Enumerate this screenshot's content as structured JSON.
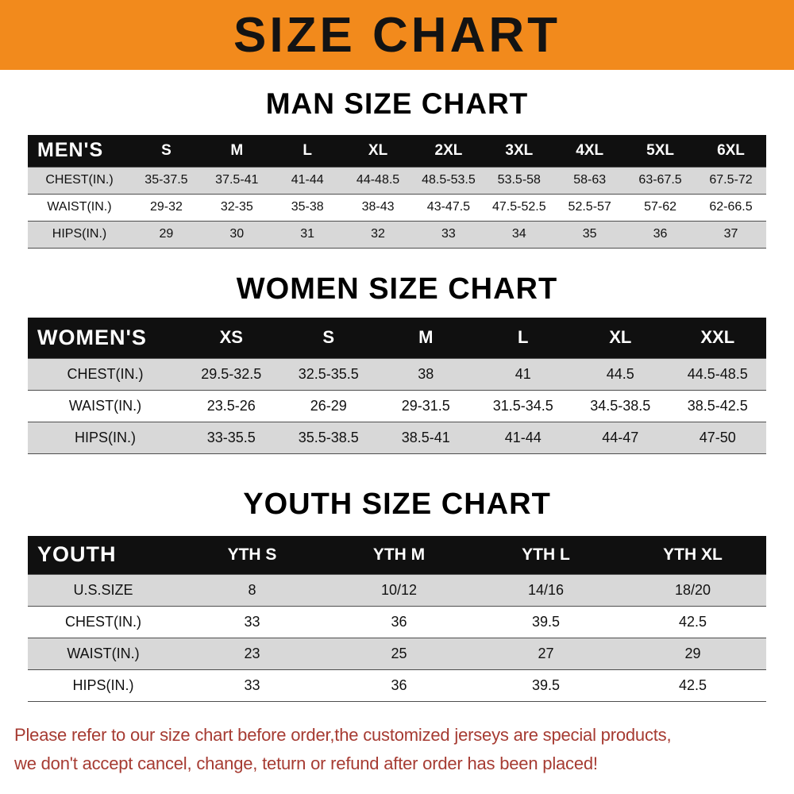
{
  "banner": {
    "title": "SIZE CHART",
    "background": "#f28a1c",
    "text_color": "#131313"
  },
  "chart_data": [
    {
      "type": "table",
      "title": "MAN SIZE CHART",
      "header_label": "MEN'S",
      "columns": [
        "S",
        "M",
        "L",
        "XL",
        "2XL",
        "3XL",
        "4XL",
        "5XL",
        "6XL"
      ],
      "rows": [
        {
          "label": "CHEST(IN.)",
          "values": [
            "35-37.5",
            "37.5-41",
            "41-44",
            "44-48.5",
            "48.5-53.5",
            "53.5-58",
            "58-63",
            "63-67.5",
            "67.5-72"
          ]
        },
        {
          "label": "WAIST(IN.)",
          "values": [
            "29-32",
            "32-35",
            "35-38",
            "38-43",
            "43-47.5",
            "47.5-52.5",
            "52.5-57",
            "57-62",
            "62-66.5"
          ]
        },
        {
          "label": "HIPS(IN.)",
          "values": [
            "29",
            "30",
            "31",
            "32",
            "33",
            "34",
            "35",
            "36",
            "37"
          ]
        }
      ]
    },
    {
      "type": "table",
      "title": "WOMEN SIZE CHART",
      "header_label": "WOMEN'S",
      "columns": [
        "XS",
        "S",
        "M",
        "L",
        "XL",
        "XXL"
      ],
      "rows": [
        {
          "label": "CHEST(IN.)",
          "values": [
            "29.5-32.5",
            "32.5-35.5",
            "38",
            "41",
            "44.5",
            "44.5-48.5"
          ]
        },
        {
          "label": "WAIST(IN.)",
          "values": [
            "23.5-26",
            "26-29",
            "29-31.5",
            "31.5-34.5",
            "34.5-38.5",
            "38.5-42.5"
          ]
        },
        {
          "label": "HIPS(IN.)",
          "values": [
            "33-35.5",
            "35.5-38.5",
            "38.5-41",
            "41-44",
            "44-47",
            "47-50"
          ]
        }
      ]
    },
    {
      "type": "table",
      "title": "YOUTH SIZE CHART",
      "header_label": "YOUTH",
      "columns": [
        "YTH S",
        "YTH M",
        "YTH L",
        "YTH XL"
      ],
      "rows": [
        {
          "label": "U.S.SIZE",
          "values": [
            "8",
            "10/12",
            "14/16",
            "18/20"
          ]
        },
        {
          "label": "CHEST(IN.)",
          "values": [
            "33",
            "36",
            "39.5",
            "42.5"
          ]
        },
        {
          "label": "WAIST(IN.)",
          "values": [
            "23",
            "25",
            "27",
            "29"
          ]
        },
        {
          "label": "HIPS(IN.)",
          "values": [
            "33",
            "36",
            "39.5",
            "42.5"
          ]
        }
      ]
    }
  ],
  "footer": {
    "lines": [
      "Please refer to our size chart before order,the customized jerseys are special products,",
      "we don't accept cancel, change, teturn or refund after order has been placed!"
    ],
    "color": "#a63b32"
  }
}
